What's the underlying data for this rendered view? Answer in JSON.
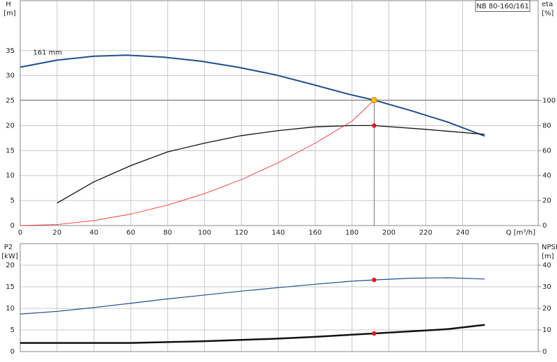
{
  "chart_data": [
    {
      "type": "line",
      "title": "NB 80-160/161",
      "annotation": "161 mm",
      "ylabel": "H",
      "yunit": "[m]",
      "y2label": "eta",
      "y2unit": "[%]",
      "xlabel": "Q [m³/h]",
      "xlim": [
        0,
        281
      ],
      "xticks": [
        0,
        20,
        40,
        60,
        80,
        100,
        120,
        140,
        160,
        180,
        200,
        220,
        240
      ],
      "ylim": [
        0,
        45
      ],
      "yticks": [
        0,
        5,
        10,
        15,
        20,
        25,
        30,
        35
      ],
      "y2lim": [
        0,
        180
      ],
      "y2ticks": [
        0,
        20,
        40,
        60,
        80,
        100
      ],
      "grid": true,
      "series": [
        {
          "color": "#1f4e8c",
          "width": 2,
          "x": [
            0,
            20,
            40,
            58,
            78,
            98,
            118,
            138,
            158,
            178,
            192,
            212,
            232,
            252
          ],
          "values": [
            31.7,
            33.1,
            33.9,
            34.1,
            33.7,
            32.9,
            31.7,
            30.2,
            28.3,
            26.3,
            25.1,
            23,
            20.7,
            17.9
          ]
        },
        {
          "color": "#111111",
          "width": 1.3,
          "axis": "y2",
          "x": [
            20,
            40,
            60,
            80,
            100,
            120,
            140,
            160,
            180,
            192,
            220,
            252
          ],
          "values": [
            18,
            35,
            48,
            59,
            66,
            72,
            76,
            79,
            80,
            80,
            77,
            73
          ]
        },
        {
          "color": "#e8342a",
          "width": 0.9,
          "x": [
            0,
            20,
            40,
            60,
            80,
            100,
            120,
            140,
            160,
            180,
            192
          ],
          "values": [
            0,
            0.2,
            1,
            2.3,
            4.1,
            6.4,
            9.2,
            12.6,
            16.5,
            20.9,
            25.1
          ]
        }
      ],
      "points": [
        {
          "x": 192,
          "y": 25.1,
          "color": "#f5c400"
        },
        {
          "x": 192,
          "y": 80,
          "color": "#e8141a",
          "axis": "y2"
        }
      ]
    },
    {
      "type": "line",
      "ylabel": "P2",
      "yunit": "[kW]",
      "y2label": "NPSH",
      "y2unit": "[m]",
      "xlim": [
        0,
        281
      ],
      "xticks": [
        0,
        20,
        40,
        60,
        80,
        100,
        120,
        140,
        160,
        180,
        200,
        220,
        240
      ],
      "ylim": [
        0,
        25
      ],
      "yticks": [
        0,
        5,
        10,
        15,
        20
      ],
      "y2lim": [
        0,
        50
      ],
      "y2ticks": [
        0,
        10,
        20,
        30,
        40
      ],
      "grid": true,
      "series": [
        {
          "color": "#1f4e8c",
          "width": 1.2,
          "x": [
            0,
            20,
            40,
            60,
            80,
            100,
            120,
            140,
            160,
            180,
            192,
            212,
            232,
            252
          ],
          "values": [
            8.7,
            9.3,
            10.2,
            11.2,
            12.2,
            13.1,
            14,
            14.8,
            15.6,
            16.3,
            16.6,
            17,
            17.1,
            16.8
          ]
        },
        {
          "color": "#111111",
          "width": 2.5,
          "axis": "y2",
          "x": [
            0,
            20,
            40,
            60,
            80,
            100,
            120,
            140,
            160,
            180,
            192,
            232,
            252
          ],
          "values": [
            4,
            4,
            4,
            4,
            4.4,
            4.8,
            5.4,
            6,
            6.8,
            7.8,
            8.4,
            10.4,
            12.4
          ]
        }
      ],
      "points": [
        {
          "x": 192,
          "y": 16.6,
          "color": "#e8141a"
        },
        {
          "x": 192,
          "y": 8.4,
          "color": "#e8141a",
          "axis": "y2"
        }
      ]
    }
  ]
}
